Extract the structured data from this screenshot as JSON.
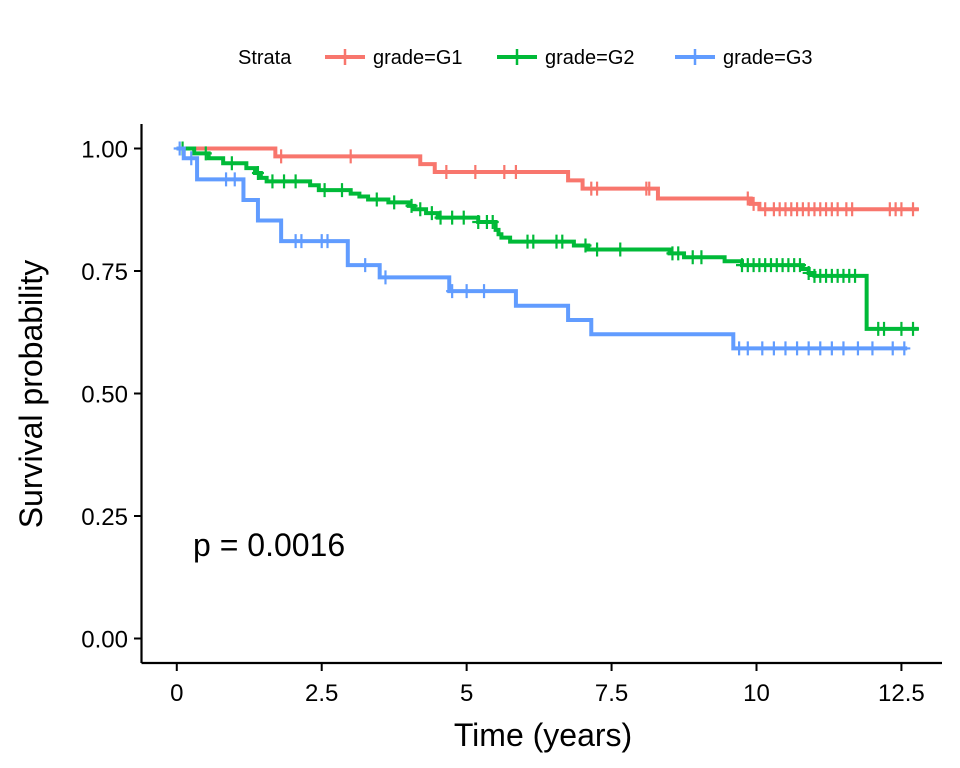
{
  "chart_data": {
    "type": "line",
    "subtype": "step",
    "xlabel": "Time (years)",
    "ylabel": "Survival probability",
    "xlim": [
      -0.6,
      13.2
    ],
    "ylim": [
      -0.05,
      1.05
    ],
    "x_ticks": [
      0,
      2.5,
      5,
      7.5,
      10,
      12.5
    ],
    "x_tick_labels": [
      "0",
      "2.5",
      "5",
      "7.5",
      "10",
      "12.5"
    ],
    "y_ticks": [
      0,
      0.25,
      0.5,
      0.75,
      1.0
    ],
    "y_tick_labels": [
      "0.00",
      "0.25",
      "0.50",
      "0.75",
      "1.00"
    ],
    "grid": false,
    "legend": {
      "title": "Strata",
      "position": "top"
    },
    "annotation": "p = 0.0016",
    "series": [
      {
        "name": "grade=G1",
        "color": "#F8766D",
        "steps": [
          [
            0,
            1.0
          ],
          [
            1.7,
            0.984
          ],
          [
            4.2,
            0.968
          ],
          [
            4.45,
            0.952
          ],
          [
            6.75,
            0.935
          ],
          [
            7.0,
            0.918
          ],
          [
            8.3,
            0.898
          ],
          [
            9.9,
            0.887
          ],
          [
            10.05,
            0.876
          ],
          [
            12.8,
            0.876
          ]
        ],
        "censor_x": [
          1.8,
          3.0,
          4.65,
          5.15,
          5.65,
          5.85,
          7.15,
          7.25,
          8.1,
          8.15,
          9.85,
          9.95,
          10.15,
          10.3,
          10.4,
          10.5,
          10.6,
          10.7,
          10.8,
          10.9,
          11.0,
          11.1,
          11.2,
          11.3,
          11.4,
          11.55,
          11.65,
          12.3,
          12.4,
          12.5,
          12.7
        ]
      },
      {
        "name": "grade=G2",
        "color": "#00BA38",
        "steps": [
          [
            0,
            1.0
          ],
          [
            0.3,
            0.99
          ],
          [
            0.55,
            0.98
          ],
          [
            0.8,
            0.97
          ],
          [
            1.2,
            0.96
          ],
          [
            1.35,
            0.95
          ],
          [
            1.45,
            0.94
          ],
          [
            1.55,
            0.933
          ],
          [
            2.3,
            0.925
          ],
          [
            2.45,
            0.915
          ],
          [
            3.0,
            0.908
          ],
          [
            3.15,
            0.902
          ],
          [
            3.3,
            0.896
          ],
          [
            3.65,
            0.89
          ],
          [
            4.0,
            0.883
          ],
          [
            4.1,
            0.876
          ],
          [
            4.3,
            0.868
          ],
          [
            4.5,
            0.859
          ],
          [
            5.2,
            0.85
          ],
          [
            5.5,
            0.834
          ],
          [
            5.55,
            0.825
          ],
          [
            5.6,
            0.818
          ],
          [
            5.75,
            0.81
          ],
          [
            6.85,
            0.802
          ],
          [
            7.1,
            0.794
          ],
          [
            8.5,
            0.786
          ],
          [
            8.75,
            0.778
          ],
          [
            8.8,
            0.778
          ],
          [
            9.45,
            0.77
          ],
          [
            9.75,
            0.762
          ],
          [
            10.8,
            0.754
          ],
          [
            10.9,
            0.746
          ],
          [
            11.0,
            0.74
          ],
          [
            11.9,
            0.632
          ],
          [
            12.8,
            0.632
          ]
        ],
        "censor_x": [
          0.1,
          0.5,
          0.95,
          1.4,
          1.65,
          1.85,
          2.05,
          2.55,
          2.85,
          3.45,
          3.75,
          4.05,
          4.2,
          4.4,
          4.55,
          4.75,
          4.95,
          5.2,
          5.35,
          5.45,
          6.05,
          6.15,
          6.55,
          6.65,
          7.05,
          7.25,
          7.65,
          8.55,
          8.65,
          8.9,
          9.05,
          9.75,
          9.85,
          9.95,
          10.05,
          10.15,
          10.25,
          10.35,
          10.45,
          10.55,
          10.65,
          10.75,
          10.9,
          11.0,
          11.1,
          11.2,
          11.3,
          11.4,
          11.5,
          11.6,
          11.7,
          12.1,
          12.2,
          12.5,
          12.7
        ]
      },
      {
        "name": "grade=G3",
        "color": "#619CFF",
        "steps": [
          [
            0,
            1.0
          ],
          [
            0.12,
            0.98
          ],
          [
            0.35,
            0.937
          ],
          [
            1.15,
            0.895
          ],
          [
            1.4,
            0.853
          ],
          [
            1.8,
            0.811
          ],
          [
            2.95,
            0.762
          ],
          [
            3.5,
            0.737
          ],
          [
            4.7,
            0.709
          ],
          [
            5.85,
            0.679
          ],
          [
            6.75,
            0.65
          ],
          [
            7.15,
            0.621
          ],
          [
            9.6,
            0.592
          ],
          [
            12.6,
            0.592
          ]
        ],
        "censor_x": [
          0.05,
          0.25,
          0.85,
          1.0,
          2.05,
          2.15,
          2.5,
          2.6,
          3.25,
          3.6,
          4.75,
          5.0,
          5.3,
          9.7,
          9.85,
          10.1,
          10.3,
          10.5,
          10.7,
          10.9,
          11.1,
          11.3,
          11.5,
          11.75,
          12.0,
          12.35,
          12.55
        ]
      }
    ]
  }
}
